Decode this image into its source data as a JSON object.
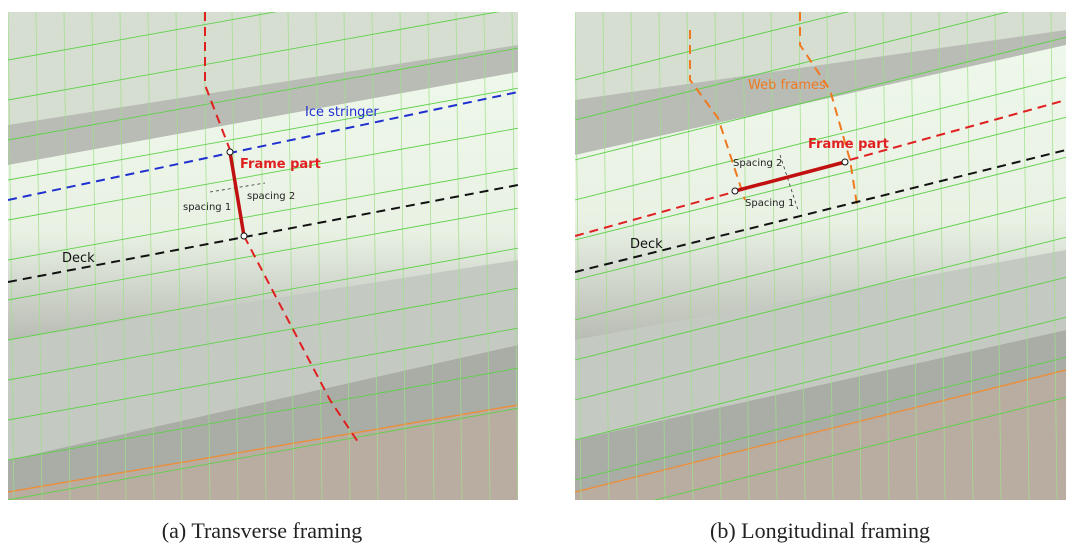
{
  "panels": [
    {
      "caption": "(a) Transverse framing",
      "labels": {
        "ice_stringer": "Ice stringer",
        "frame_part": "Frame part",
        "spacing_1": "spacing 1",
        "spacing_2": "spacing 2",
        "deck": "Deck"
      }
    },
    {
      "caption": "(b) Longitudinal framing",
      "labels": {
        "web_frames": "Web frames",
        "frame_part": "Frame part",
        "spacing_2": "Spacing 2",
        "spacing_1": "Spacing 1",
        "deck": "Deck"
      }
    }
  ]
}
